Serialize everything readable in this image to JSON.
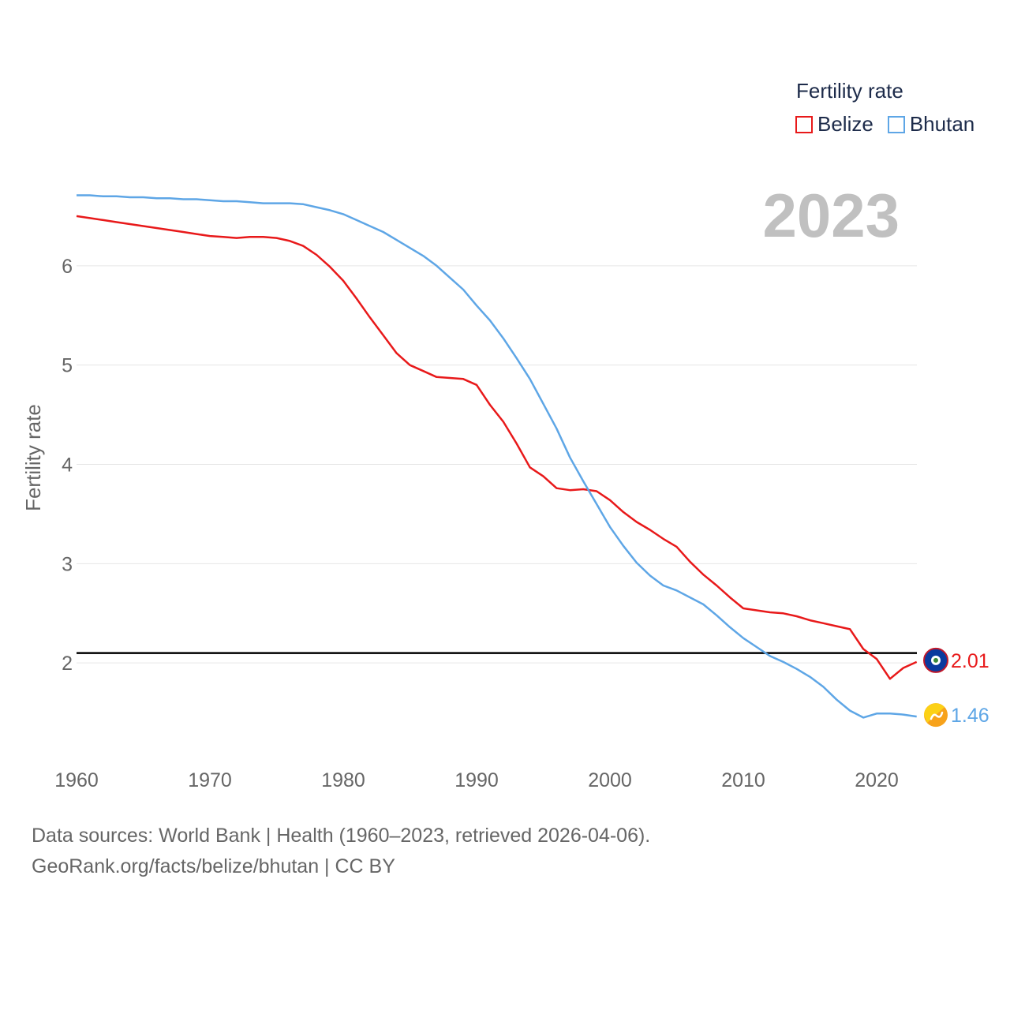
{
  "legend": {
    "title": "Fertility rate",
    "items": [
      {
        "label": "Belize",
        "color": "#e8191a"
      },
      {
        "label": "Bhutan",
        "color": "#5ea6e6"
      }
    ]
  },
  "footer": {
    "line1": "Data sources: World Bank | Health (1960–2023, retrieved 2026-04-06).",
    "line2": "GeoRank.org/facts/belize/bhutan | CC BY"
  },
  "chart_data": {
    "type": "line",
    "title": "Fertility rate",
    "year_label": "2023",
    "ylabel": "Fertility rate",
    "xlabel": "",
    "xlim": [
      1960,
      2023
    ],
    "ylim": [
      1,
      7
    ],
    "x_ticks": [
      1960,
      1970,
      1980,
      1990,
      2000,
      2010,
      2020
    ],
    "y_ticks": [
      2,
      3,
      4,
      5,
      6
    ],
    "reference_line": {
      "y": 2.1,
      "color": "#000000"
    },
    "x": [
      1960,
      1961,
      1962,
      1963,
      1964,
      1965,
      1966,
      1967,
      1968,
      1969,
      1970,
      1971,
      1972,
      1973,
      1974,
      1975,
      1976,
      1977,
      1978,
      1979,
      1980,
      1981,
      1982,
      1983,
      1984,
      1985,
      1986,
      1987,
      1988,
      1989,
      1990,
      1991,
      1992,
      1993,
      1994,
      1995,
      1996,
      1997,
      1998,
      1999,
      2000,
      2001,
      2002,
      2003,
      2004,
      2005,
      2006,
      2007,
      2008,
      2009,
      2010,
      2011,
      2012,
      2013,
      2014,
      2015,
      2016,
      2017,
      2018,
      2019,
      2020,
      2021,
      2022,
      2023
    ],
    "series": [
      {
        "name": "Belize",
        "color": "#e8191a",
        "end_label": "2.01",
        "values": [
          6.5,
          6.48,
          6.46,
          6.44,
          6.42,
          6.4,
          6.38,
          6.36,
          6.34,
          6.32,
          6.3,
          6.29,
          6.28,
          6.29,
          6.29,
          6.28,
          6.25,
          6.2,
          6.11,
          5.99,
          5.85,
          5.67,
          5.48,
          5.3,
          5.12,
          5.0,
          4.94,
          4.88,
          4.87,
          4.86,
          4.8,
          4.6,
          4.43,
          4.21,
          3.97,
          3.88,
          3.76,
          3.74,
          3.75,
          3.73,
          3.64,
          3.52,
          3.42,
          3.34,
          3.25,
          3.17,
          3.02,
          2.89,
          2.78,
          2.66,
          2.55,
          2.53,
          2.51,
          2.5,
          2.47,
          2.43,
          2.4,
          2.37,
          2.34,
          2.14,
          2.04,
          1.84,
          1.95,
          2.01
        ]
      },
      {
        "name": "Bhutan",
        "color": "#5ea6e6",
        "end_label": "1.46",
        "values": [
          6.71,
          6.71,
          6.7,
          6.7,
          6.69,
          6.69,
          6.68,
          6.68,
          6.67,
          6.67,
          6.66,
          6.65,
          6.65,
          6.64,
          6.63,
          6.63,
          6.63,
          6.62,
          6.59,
          6.56,
          6.52,
          6.46,
          6.4,
          6.34,
          6.26,
          6.18,
          6.1,
          6.0,
          5.88,
          5.76,
          5.6,
          5.45,
          5.27,
          5.07,
          4.86,
          4.61,
          4.36,
          4.07,
          3.83,
          3.6,
          3.37,
          3.18,
          3.01,
          2.88,
          2.78,
          2.73,
          2.66,
          2.59,
          2.48,
          2.36,
          2.25,
          2.16,
          2.07,
          2.01,
          1.94,
          1.86,
          1.76,
          1.63,
          1.52,
          1.45,
          1.49,
          1.49,
          1.48,
          1.46
        ]
      }
    ]
  }
}
